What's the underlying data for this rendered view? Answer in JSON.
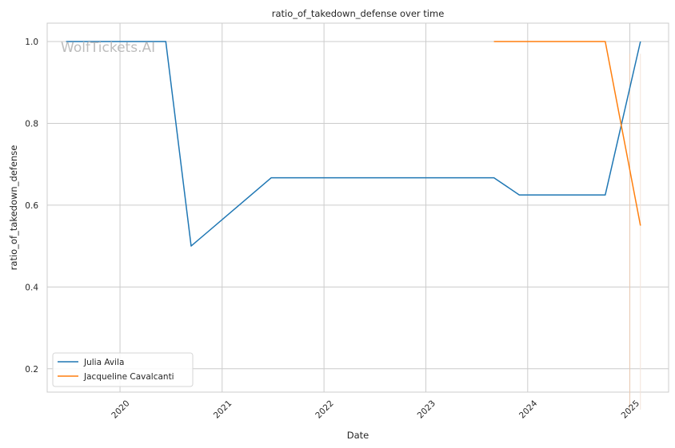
{
  "chart_data": {
    "type": "line",
    "title": "ratio_of_takedown_defense over time",
    "xlabel": "Date",
    "ylabel": "ratio_of_takedown_defense",
    "xlim": [
      "2019-04-15",
      "2025-05-20"
    ],
    "ylim": [
      0.143,
      1.045
    ],
    "x_ticks": [
      {
        "label": "2020",
        "value": "2020-01-01"
      },
      {
        "label": "2021",
        "value": "2021-01-01"
      },
      {
        "label": "2022",
        "value": "2022-01-01"
      },
      {
        "label": "2023",
        "value": "2023-01-01"
      },
      {
        "label": "2024",
        "value": "2024-01-01"
      },
      {
        "label": "2025",
        "value": "2025-01-01"
      }
    ],
    "y_ticks": [
      0.2,
      0.4,
      0.6,
      0.8,
      1.0
    ],
    "y_tick_labels": [
      "0.2",
      "0.4",
      "0.6",
      "0.8",
      "1.0"
    ],
    "grid": true,
    "legend_position": "bottom-left",
    "watermark": "WolfTickets.AI",
    "series": [
      {
        "name": "Julia Avila",
        "color": "#1f77b4",
        "points": [
          {
            "x": "2019-06-22",
            "y": 1.0
          },
          {
            "x": "2020-06-13",
            "y": 1.0
          },
          {
            "x": "2020-09-12",
            "y": 0.5
          },
          {
            "x": "2021-06-26",
            "y": 0.667
          },
          {
            "x": "2023-09-02",
            "y": 0.667
          },
          {
            "x": "2023-12-02",
            "y": 0.625
          },
          {
            "x": "2024-10-05",
            "y": 0.625
          },
          {
            "x": "2025-02-08",
            "y": 1.0
          }
        ]
      },
      {
        "name": "Jacqueline Cavalcanti",
        "color": "#ff7f0e",
        "points": [
          {
            "x": "2023-09-02",
            "y": 1.0
          },
          {
            "x": "2024-10-05",
            "y": 1.0
          },
          {
            "x": "2025-02-08",
            "y": 0.55
          }
        ]
      }
    ],
    "vertical_markers": [
      {
        "x": "2025-01-01",
        "color": "#e8c8b0"
      },
      {
        "x": "2025-02-08",
        "color": "#f3e3d8"
      }
    ]
  }
}
